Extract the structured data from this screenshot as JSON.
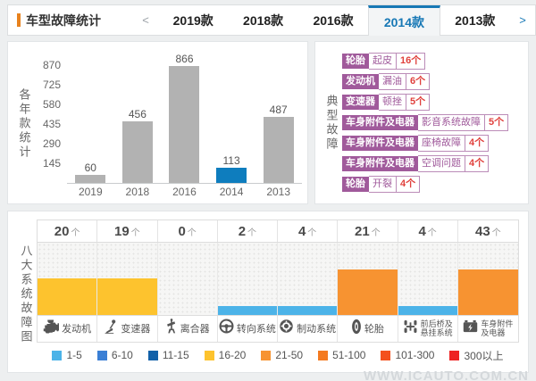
{
  "header": {
    "title": "车型故障统计",
    "prev_arrow": "<",
    "next_arrow": ">",
    "tabs": [
      {
        "label": "2019款",
        "active": false
      },
      {
        "label": "2018款",
        "active": false
      },
      {
        "label": "2016款",
        "active": false
      },
      {
        "label": "2014款",
        "active": true
      },
      {
        "label": "2013款",
        "active": false
      }
    ]
  },
  "chart_data": [
    {
      "type": "bar",
      "title": "各年款统计",
      "categories": [
        "2019",
        "2018",
        "2016",
        "2014",
        "2013"
      ],
      "values": [
        60,
        456,
        866,
        113,
        487
      ],
      "highlight_category": "2014",
      "bar_color": "#b2b2b2",
      "highlight_color": "#0e7dbe",
      "yticks": [
        145,
        290,
        435,
        580,
        725,
        870
      ],
      "ylim": [
        0,
        890
      ],
      "grid": false,
      "value_labels": true
    },
    {
      "type": "bar",
      "title": "八大系统故障图",
      "categories": [
        "发动机",
        "变速器",
        "离合器",
        "转向系统",
        "制动系统",
        "轮胎",
        "前后桥及悬挂系统",
        "车身附件及电器"
      ],
      "category_lines": [
        [
          "发动机"
        ],
        [
          "变速器"
        ],
        [
          "离合器"
        ],
        [
          "转向系统"
        ],
        [
          "制动系统"
        ],
        [
          "轮胎"
        ],
        [
          "前后桥及",
          "悬挂系统"
        ],
        [
          "车身附件",
          "及电器"
        ]
      ],
      "category_icons": [
        "engine-icon",
        "gearshift-icon",
        "clutch-icon",
        "steering-wheel-icon",
        "brake-disc-icon",
        "tire-icon",
        "axle-icon",
        "battery-icon"
      ],
      "values": [
        20,
        19,
        0,
        2,
        4,
        21,
        4,
        43
      ],
      "value_suffix": "个",
      "legend_position": "bottom",
      "buckets": [
        {
          "label": "1-5",
          "color": "#4cb3e8",
          "min": 1,
          "max": 5
        },
        {
          "label": "6-10",
          "color": "#3a7fd5",
          "min": 6,
          "max": 10
        },
        {
          "label": "11-15",
          "color": "#1261a9",
          "min": 11,
          "max": 15
        },
        {
          "label": "16-20",
          "color": "#fdc32e",
          "min": 16,
          "max": 20
        },
        {
          "label": "21-50",
          "color": "#f79331",
          "min": 21,
          "max": 50
        },
        {
          "label": "51-100",
          "color": "#f47a20",
          "min": 51,
          "max": 100
        },
        {
          "label": "101-300",
          "color": "#f4511e",
          "min": 101,
          "max": 300
        },
        {
          "label": "300以上",
          "color": "#ee2222",
          "min": 301,
          "max": null
        }
      ]
    }
  ],
  "typical_faults": {
    "title": "典型故障",
    "items": [
      {
        "category": "轮胎",
        "issue": "起皮",
        "count": "16个"
      },
      {
        "category": "发动机",
        "issue": "漏油",
        "count": "6个"
      },
      {
        "category": "变速器",
        "issue": "顿挫",
        "count": "5个"
      },
      {
        "category": "车身附件及电器",
        "issue": "影音系统故障",
        "count": "5个"
      },
      {
        "category": "车身附件及电器",
        "issue": "座椅故障",
        "count": "4个"
      },
      {
        "category": "车身附件及电器",
        "issue": "空调问题",
        "count": "4个"
      },
      {
        "category": "轮胎",
        "issue": "开裂",
        "count": "4个"
      }
    ]
  },
  "watermark": "WWW.ICAUTO.COM.CN",
  "colors": {
    "accent_orange": "#e8821e",
    "tab_active_blue": "#1778b5",
    "tag_purple": "#a05a9b",
    "count_red": "#e0403c",
    "bar_gray": "#b2b2b2",
    "bar_blue": "#0e7dbe"
  }
}
